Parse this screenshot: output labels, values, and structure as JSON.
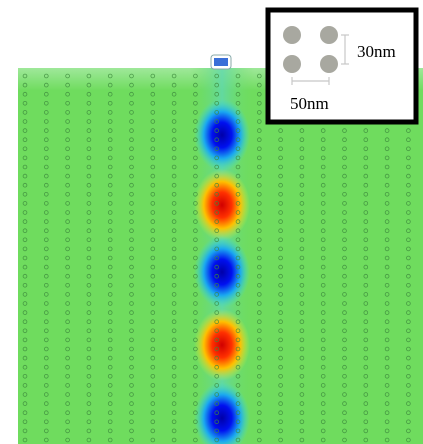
{
  "inset": {
    "height_label": "30nm",
    "width_label": "50nm"
  }
}
